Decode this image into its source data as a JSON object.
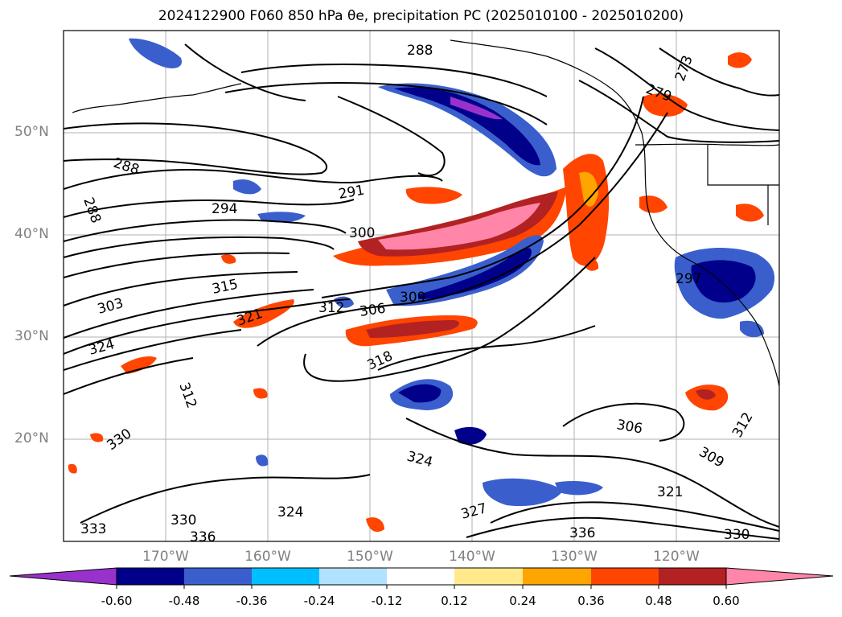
{
  "title": "2024122900 F060 850 hPa θe, precipitation PC (2025010100 - 2025010200)",
  "map": {
    "lat_labels": [
      "50°N",
      "40°N",
      "30°N",
      "20°N"
    ],
    "lon_labels": [
      "170°W",
      "160°W",
      "150°W",
      "140°W",
      "130°W",
      "120°W"
    ],
    "contour_labels": [
      {
        "text": "288",
        "id": "c288a"
      },
      {
        "text": "288",
        "id": "c288b"
      },
      {
        "text": "288",
        "id": "c288c"
      },
      {
        "text": "291",
        "id": "c291"
      },
      {
        "text": "294",
        "id": "c294"
      },
      {
        "text": "300",
        "id": "c300"
      },
      {
        "text": "303",
        "id": "c303"
      },
      {
        "text": "315",
        "id": "c315"
      },
      {
        "text": "312",
        "id": "c312a"
      },
      {
        "text": "306",
        "id": "c306a"
      },
      {
        "text": "309",
        "id": "c309a"
      },
      {
        "text": "318",
        "id": "c318"
      },
      {
        "text": "321",
        "id": "c321a"
      },
      {
        "text": "324",
        "id": "c324a"
      },
      {
        "text": "312",
        "id": "c312b"
      },
      {
        "text": "330",
        "id": "c330a"
      },
      {
        "text": "324",
        "id": "c324b"
      },
      {
        "text": "324",
        "id": "c324c"
      },
      {
        "text": "327",
        "id": "c327"
      },
      {
        "text": "306",
        "id": "c306b"
      },
      {
        "text": "309",
        "id": "c309b"
      },
      {
        "text": "312",
        "id": "c312c"
      },
      {
        "text": "321",
        "id": "c321b"
      },
      {
        "text": "330",
        "id": "c330b"
      },
      {
        "text": "336",
        "id": "c336a"
      },
      {
        "text": "333",
        "id": "c333"
      },
      {
        "text": "330",
        "id": "c330c"
      },
      {
        "text": "336",
        "id": "c336b"
      },
      {
        "text": "273",
        "id": "c273"
      },
      {
        "text": "279",
        "id": "c279"
      },
      {
        "text": "297",
        "id": "c297"
      }
    ]
  },
  "colorbar": {
    "levels": [
      "-0.60",
      "-0.48",
      "-0.36",
      "-0.24",
      "-0.12",
      "0.12",
      "0.24",
      "0.36",
      "0.48",
      "0.60"
    ],
    "colors": [
      "#9932CC",
      "#00008B",
      "#3A5FCD",
      "#00BFFF",
      "#B0E2FF",
      "#FFFFFF",
      "#FFE98A",
      "#FFA500",
      "#FF4500",
      "#B22222",
      "#FF86A8"
    ]
  }
}
